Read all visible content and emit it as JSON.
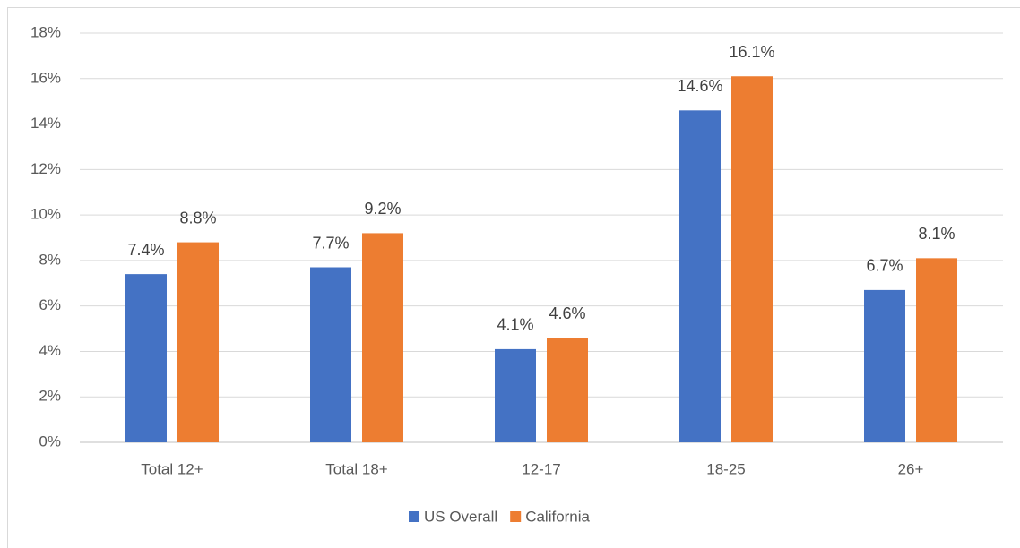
{
  "chart_data": {
    "type": "bar",
    "categories": [
      "Total 12+",
      "Total 18+",
      "12-17",
      "18-25",
      "26+"
    ],
    "series": [
      {
        "name": "US Overall",
        "color": "#4472c4",
        "values": [
          7.4,
          7.7,
          4.1,
          14.6,
          6.7
        ],
        "value_labels": [
          "7.4%",
          "7.7%",
          "4.1%",
          "14.6%",
          "6.7%"
        ]
      },
      {
        "name": "California",
        "color": "#ed7d31",
        "values": [
          8.8,
          9.2,
          4.6,
          16.1,
          8.1
        ],
        "value_labels": [
          "8.8%",
          "9.2%",
          "4.6%",
          "16.1%",
          "8.1%"
        ]
      }
    ],
    "ylim": [
      0,
      18
    ],
    "yticks": [
      {
        "value": 0,
        "label": "0%"
      },
      {
        "value": 2,
        "label": "2%"
      },
      {
        "value": 4,
        "label": "4%"
      },
      {
        "value": 6,
        "label": "6%"
      },
      {
        "value": 8,
        "label": "8%"
      },
      {
        "value": 10,
        "label": "10%"
      },
      {
        "value": 12,
        "label": "12%"
      },
      {
        "value": 14,
        "label": "14%"
      },
      {
        "value": 16,
        "label": "16%"
      },
      {
        "value": 18,
        "label": "18%"
      }
    ],
    "grid": true,
    "legend": "bottom"
  }
}
